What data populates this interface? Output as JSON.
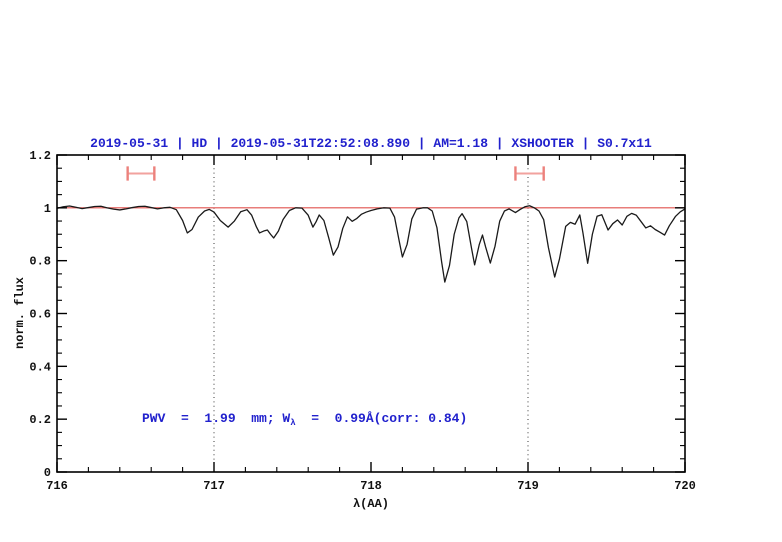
{
  "chart_data": {
    "type": "line",
    "title": "2019-05-31 | HD | 2019-05-31T22:52:08.890 | AM=1.18 | XSHOOTER | S0.7x11",
    "xlabel": "λ(AA)",
    "ylabel": "norm. flux",
    "xlim": [
      716,
      720
    ],
    "ylim": [
      0,
      1.2
    ],
    "x_major_ticks": [
      716,
      717,
      718,
      719,
      720
    ],
    "x_tick_labels": [
      "716",
      "717",
      "718",
      "719",
      "720"
    ],
    "x_minor_step": 0.2,
    "y_major_ticks": [
      0,
      0.2,
      0.4,
      0.6,
      0.8,
      1,
      1.2
    ],
    "y_tick_labels": [
      "0",
      "0.2",
      "0.4",
      "0.6",
      "0.8",
      "1",
      "1.2"
    ],
    "y_minor_step": 0.05,
    "grid": "off",
    "legend": "none",
    "dotted_vlines_x": [
      717,
      719
    ],
    "continuum_line": {
      "y": 1.0
    },
    "telluric_band_markers": {
      "y": 1.13,
      "cap_half_height": 0.027,
      "ranges": [
        [
          716.45,
          716.62
        ],
        [
          718.92,
          719.1
        ]
      ]
    },
    "annotation": {
      "text": "PWV  =  1.99  mm; Wλ  =  0.99Å(corr: 0.84)",
      "pre": "PWV  =  1.99  mm; W",
      "sub": "λ",
      "post": "  =  0.99Å(corr: 0.84)",
      "position": {
        "x": 716.55,
        "y": 0.21
      }
    },
    "colors": {
      "title_blue": "#2121cd",
      "annotation_blue": "#2121cd",
      "spectrum_black": "#1a1a1a",
      "continuum_red": "#e0524e",
      "marker_bar_pink": "#f2a29e",
      "marker_cap_pink": "#ec817c",
      "dotted_line": "#3a3a3a",
      "axis_black": "#000000"
    },
    "series": [
      {
        "name": "spectrum",
        "x": [
          716.0,
          716.04,
          716.08,
          716.12,
          716.16,
          716.2,
          716.24,
          716.28,
          716.32,
          716.36,
          716.4,
          716.44,
          716.48,
          716.52,
          716.56,
          716.6,
          716.64,
          716.68,
          716.72,
          716.76,
          716.8,
          716.83,
          716.86,
          716.9,
          716.94,
          716.97,
          717.0,
          717.04,
          717.09,
          717.13,
          717.17,
          717.21,
          717.24,
          717.27,
          717.29,
          717.32,
          717.34,
          717.36,
          717.38,
          717.41,
          717.44,
          717.48,
          717.52,
          717.56,
          717.6,
          717.63,
          717.65,
          717.67,
          717.7,
          717.73,
          717.76,
          717.79,
          717.82,
          717.85,
          717.88,
          717.91,
          717.94,
          717.97,
          718.0,
          718.04,
          718.08,
          718.12,
          718.15,
          718.18,
          718.2,
          718.23,
          718.26,
          718.29,
          718.33,
          718.36,
          718.39,
          718.42,
          718.45,
          718.47,
          718.5,
          718.53,
          718.56,
          718.58,
          718.61,
          718.64,
          718.66,
          718.69,
          718.71,
          718.73,
          718.76,
          718.79,
          718.82,
          718.85,
          718.88,
          718.92,
          718.95,
          718.98,
          719.01,
          719.04,
          719.07,
          719.1,
          719.13,
          719.17,
          719.2,
          719.24,
          719.27,
          719.3,
          719.33,
          719.35,
          719.38,
          719.41,
          719.44,
          719.47,
          719.51,
          719.54,
          719.57,
          719.6,
          719.63,
          719.66,
          719.69,
          719.72,
          719.75,
          719.78,
          719.81,
          719.84,
          719.87,
          719.9,
          719.94,
          719.97,
          720.0
        ],
        "y": [
          0.998,
          1.004,
          1.007,
          1.002,
          0.997,
          1.001,
          1.005,
          1.006,
          1.0,
          0.995,
          0.992,
          0.996,
          1.001,
          1.005,
          1.006,
          1.001,
          0.996,
          1.0,
          1.002,
          0.993,
          0.952,
          0.905,
          0.918,
          0.965,
          0.988,
          0.994,
          0.984,
          0.952,
          0.927,
          0.95,
          0.985,
          0.993,
          0.972,
          0.928,
          0.905,
          0.913,
          0.916,
          0.9,
          0.886,
          0.912,
          0.956,
          0.99,
          1.0,
          0.999,
          0.972,
          0.927,
          0.947,
          0.973,
          0.952,
          0.888,
          0.821,
          0.852,
          0.922,
          0.966,
          0.949,
          0.96,
          0.976,
          0.984,
          0.99,
          0.996,
          1.0,
          0.999,
          0.965,
          0.873,
          0.814,
          0.862,
          0.958,
          0.995,
          1.0,
          1.0,
          0.988,
          0.925,
          0.795,
          0.719,
          0.782,
          0.9,
          0.962,
          0.978,
          0.948,
          0.848,
          0.784,
          0.862,
          0.897,
          0.852,
          0.791,
          0.855,
          0.95,
          0.988,
          0.996,
          0.982,
          0.994,
          1.004,
          1.008,
          1.0,
          0.988,
          0.955,
          0.85,
          0.738,
          0.805,
          0.93,
          0.945,
          0.938,
          0.973,
          0.905,
          0.79,
          0.9,
          0.968,
          0.974,
          0.916,
          0.94,
          0.954,
          0.935,
          0.968,
          0.979,
          0.972,
          0.948,
          0.924,
          0.932,
          0.918,
          0.908,
          0.897,
          0.932,
          0.968,
          0.985,
          0.996
        ]
      }
    ]
  }
}
